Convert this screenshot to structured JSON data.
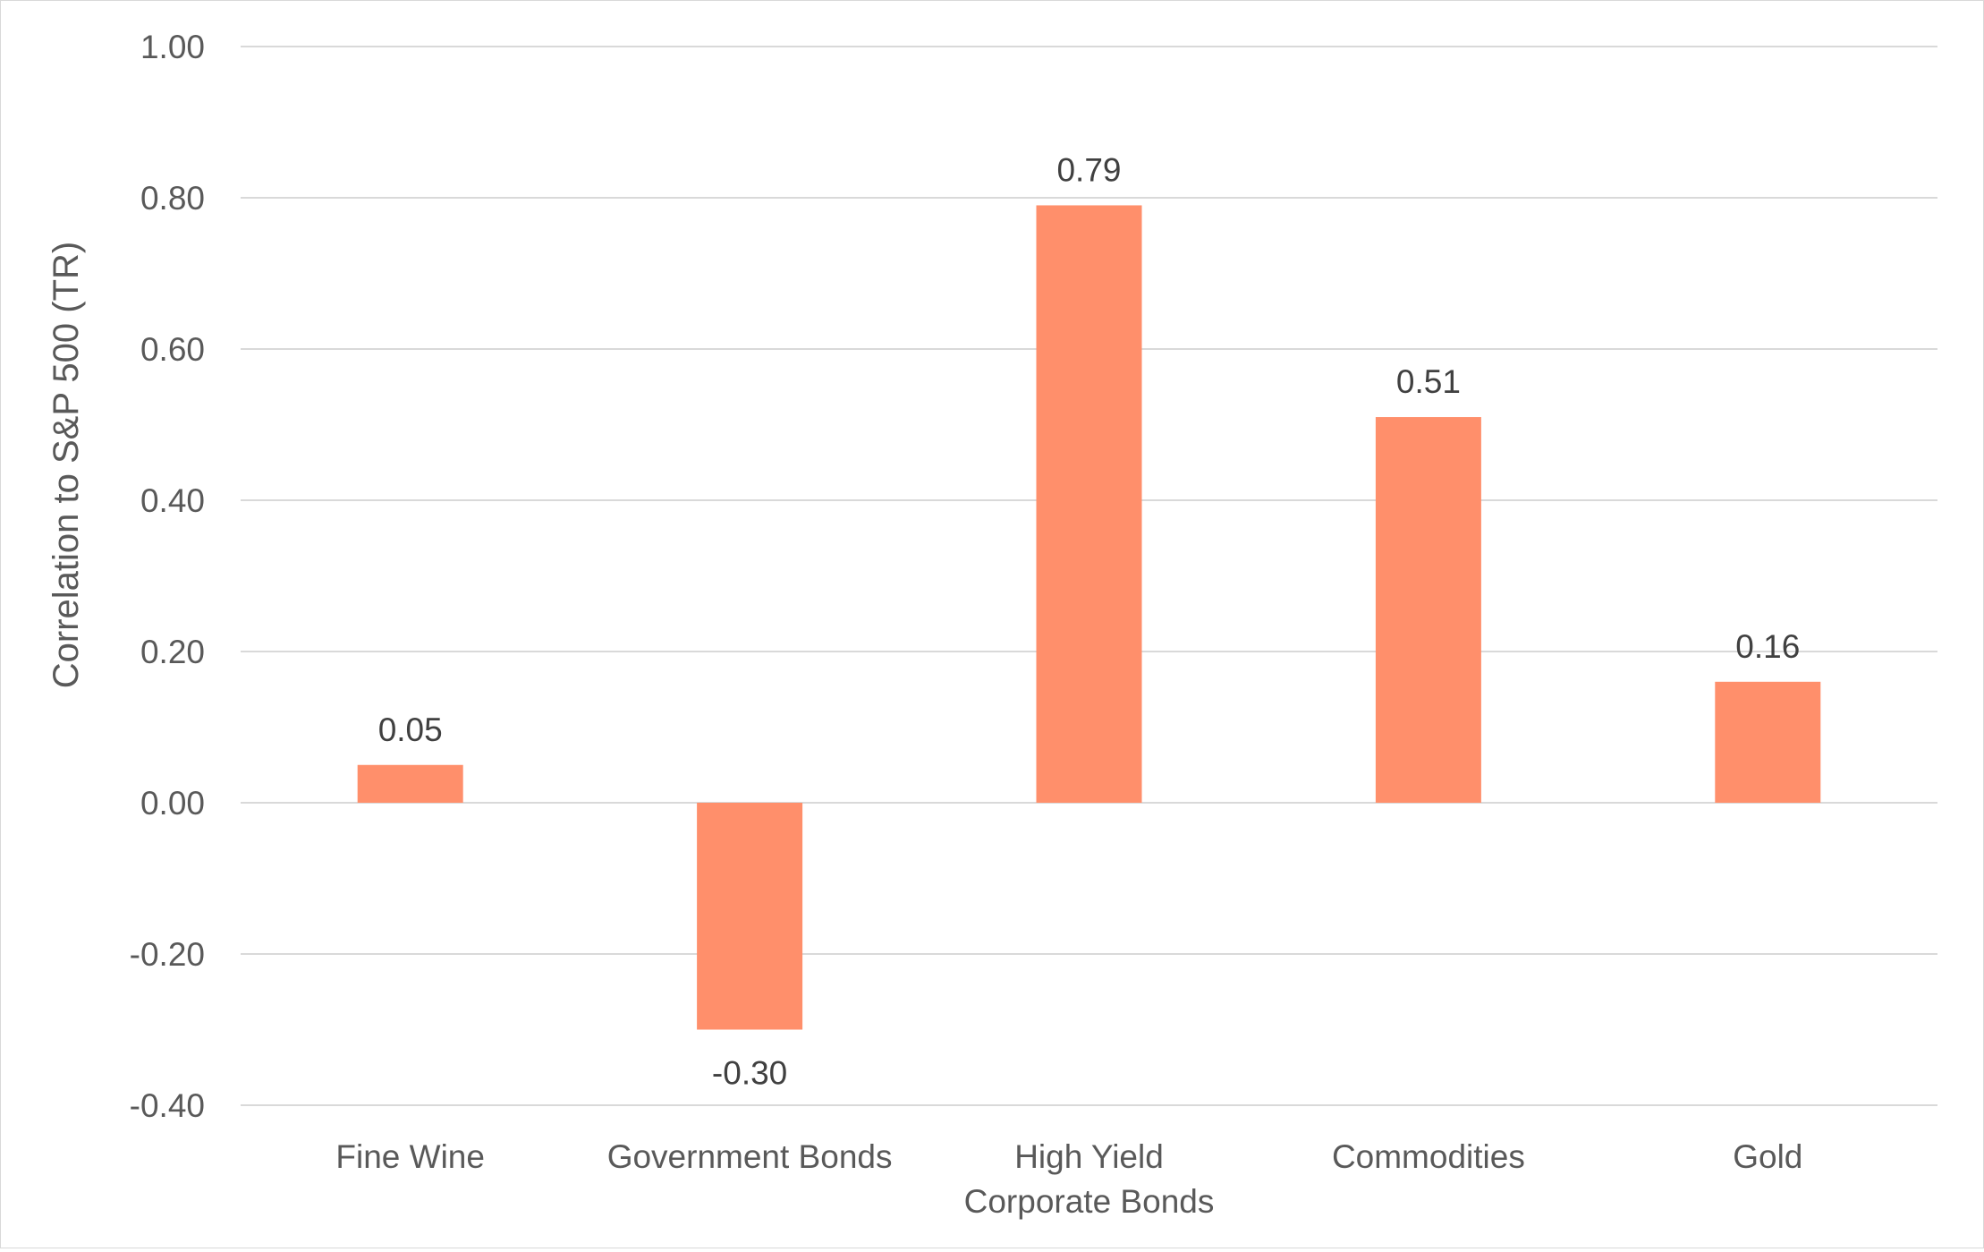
{
  "chart_data": {
    "type": "bar",
    "title": "",
    "xlabel": "",
    "ylabel": "Correlation to S&P 500 (TR)",
    "categories": [
      [
        "Fine Wine"
      ],
      [
        "Government Bonds"
      ],
      [
        "High Yield",
        "Corporate Bonds"
      ],
      [
        "Commodities"
      ],
      [
        "Gold"
      ]
    ],
    "values": [
      0.05,
      -0.3,
      0.79,
      0.51,
      0.16
    ],
    "data_labels": [
      "0.05",
      "-0.30",
      "0.79",
      "0.51",
      "0.16"
    ],
    "ylim": [
      -0.4,
      1.0
    ],
    "yticks": [
      -0.4,
      -0.2,
      0.0,
      0.2,
      0.4,
      0.6,
      0.8,
      1.0
    ],
    "ytick_labels": [
      "-0.40",
      "-0.20",
      "0.00",
      "0.20",
      "0.40",
      "0.60",
      "0.80",
      "1.00"
    ],
    "grid": true,
    "legend": "none",
    "bar_color": "#ff8f6b",
    "grid_color": "#d9d9d9",
    "text_color": "#595959"
  }
}
